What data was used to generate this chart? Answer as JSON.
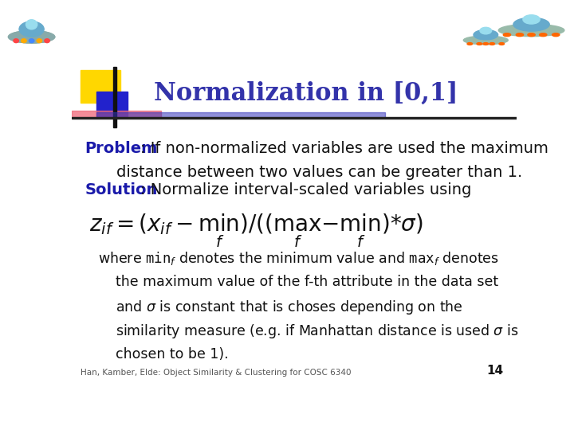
{
  "title": "Normalization in [0,1]",
  "title_color": "#3333aa",
  "title_fontsize": 22,
  "background_color": "#ffffff",
  "problem_label": "Problem",
  "solution_label": "Solution",
  "solution_text": ": Normalize interval-scaled variables using",
  "footer_text": "Han, Kamber, Elde: Object Similarity & Clustering for COSC 6340",
  "page_number": "14",
  "label_color": "#1a1aaa",
  "text_color": "#111111",
  "text_fontsize": 13,
  "label_fontsize": 14
}
